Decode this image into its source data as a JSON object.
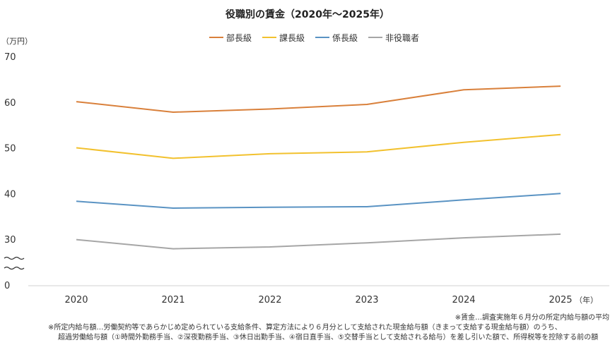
{
  "chart_data": {
    "type": "line",
    "title": "役職別の賃金（2020年～2025年）",
    "y_unit": "（万円）",
    "x_unit": "（年）",
    "categories": [
      "2020",
      "2021",
      "2022",
      "2023",
      "2024",
      "2025"
    ],
    "y_ticks": [
      "70",
      "60",
      "50",
      "40",
      "30",
      "0"
    ],
    "axis_break": true,
    "ylim": [
      0,
      70
    ],
    "grid": false,
    "legend_position": "top",
    "series": [
      {
        "name": "部長級",
        "color": "#d9803b",
        "values": [
          60.1,
          57.8,
          58.5,
          59.5,
          62.7,
          63.5
        ]
      },
      {
        "name": "課長級",
        "color": "#f2c12e",
        "values": [
          50.0,
          47.7,
          48.7,
          49.1,
          51.2,
          52.9
        ]
      },
      {
        "name": "係長級",
        "color": "#5a93c3",
        "values": [
          38.3,
          36.8,
          37.0,
          37.1,
          38.6,
          40.0
        ]
      },
      {
        "name": "非役職者",
        "color": "#a6a6a6",
        "values": [
          29.9,
          27.9,
          28.3,
          29.2,
          30.3,
          31.1
        ]
      }
    ]
  },
  "notes": [
    "※賃金…調査実施年６月分の所定内給与額の平均",
    "※所定内給与額…労働契約等であらかじめ定められている支給条件、算定方法により６月分として支給された現金給与額（きまって支給する現金給与額）のうち、",
    "超過労働給与額（①時間外勤務手当、②深夜勤務手当、③休日出勤手当、④宿日直手当、⑤交替手当として支給される給与）を差し引いた額で、所得税等を控除する前の額"
  ]
}
